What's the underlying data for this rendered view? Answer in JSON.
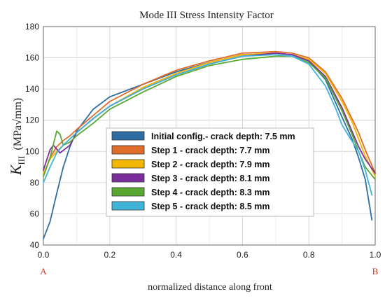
{
  "chart_data": {
    "type": "line",
    "title": "Mode III Stress Intensity Factor",
    "xlabel": "normalized distance along front",
    "ylabel_main": "K",
    "ylabel_sub": "III",
    "ylabel_unit": "(MPa√mm)",
    "end_labels": {
      "left": "A",
      "right": "B"
    },
    "xlim": [
      0,
      1
    ],
    "ylim": [
      40,
      180
    ],
    "xticks": [
      {
        "v": 0.0,
        "label": "0.0"
      },
      {
        "v": 0.2,
        "label": "0.2"
      },
      {
        "v": 0.4,
        "label": "0.4"
      },
      {
        "v": 0.6,
        "label": "0.6"
      },
      {
        "v": 0.8,
        "label": "0.8"
      },
      {
        "v": 1.0,
        "label": "1.0"
      }
    ],
    "yticks": [
      {
        "v": 40,
        "label": "40"
      },
      {
        "v": 60,
        "label": "60"
      },
      {
        "v": 80,
        "label": "80"
      },
      {
        "v": 100,
        "label": "100"
      },
      {
        "v": 120,
        "label": "120"
      },
      {
        "v": 140,
        "label": "140"
      },
      {
        "v": 160,
        "label": "160"
      },
      {
        "v": 180,
        "label": "180"
      }
    ],
    "grid": true,
    "legend_position": "center-left",
    "series": [
      {
        "name": "Initial config.- crack depth: 7.5 mm",
        "color": "#2e6da4",
        "x": [
          0.0,
          0.02,
          0.04,
          0.06,
          0.08,
          0.1,
          0.15,
          0.2,
          0.3,
          0.4,
          0.5,
          0.6,
          0.7,
          0.75,
          0.8,
          0.85,
          0.9,
          0.93,
          0.95,
          0.97,
          0.99
        ],
        "y": [
          44,
          55,
          73,
          90,
          103,
          113,
          127,
          135,
          143,
          151,
          157,
          162,
          163,
          162,
          158,
          146,
          122,
          108,
          96,
          82,
          56
        ]
      },
      {
        "name": "Step 1 - crack depth: 7.7 mm",
        "color": "#e06c2a",
        "x": [
          0.0,
          0.02,
          0.04,
          0.06,
          0.08,
          0.1,
          0.15,
          0.2,
          0.3,
          0.4,
          0.5,
          0.6,
          0.7,
          0.75,
          0.8,
          0.85,
          0.9,
          0.93,
          0.95,
          0.97,
          1.0
        ],
        "y": [
          84,
          96,
          103,
          107,
          110,
          114,
          123,
          132,
          143,
          152,
          158,
          163,
          164,
          163,
          160,
          151,
          134,
          121,
          112,
          101,
          86
        ]
      },
      {
        "name": "Step 2 - crack depth: 7.9 mm",
        "color": "#f2b705",
        "x": [
          0.0,
          0.02,
          0.04,
          0.06,
          0.08,
          0.1,
          0.15,
          0.2,
          0.3,
          0.4,
          0.5,
          0.6,
          0.7,
          0.75,
          0.8,
          0.85,
          0.9,
          0.93,
          0.95,
          0.97,
          1.0
        ],
        "y": [
          86,
          95,
          100,
          104,
          108,
          112,
          121,
          129,
          141,
          150,
          157,
          162,
          163,
          162,
          159,
          150,
          132,
          119,
          108,
          97,
          84
        ]
      },
      {
        "name": "Step 3 - crack depth: 8.1 mm",
        "color": "#7a2e9c",
        "x": [
          0.0,
          0.02,
          0.03,
          0.05,
          0.08,
          0.1,
          0.15,
          0.2,
          0.3,
          0.4,
          0.5,
          0.6,
          0.7,
          0.75,
          0.8,
          0.85,
          0.9,
          0.93,
          0.95,
          0.97,
          1.0
        ],
        "y": [
          88,
          101,
          104,
          99,
          104,
          112,
          121,
          129,
          140,
          149,
          156,
          161,
          163,
          162,
          158,
          148,
          128,
          113,
          103,
          95,
          86
        ]
      },
      {
        "name": "Step 4 - crack depth: 8.3 mm",
        "color": "#5aa832",
        "x": [
          0.0,
          0.02,
          0.04,
          0.05,
          0.06,
          0.08,
          0.1,
          0.15,
          0.2,
          0.3,
          0.4,
          0.5,
          0.6,
          0.7,
          0.75,
          0.8,
          0.85,
          0.9,
          0.93,
          0.95,
          0.97,
          1.0
        ],
        "y": [
          84,
          96,
          113,
          111,
          104,
          106,
          110,
          118,
          127,
          138,
          148,
          155,
          159,
          161,
          161,
          157,
          147,
          126,
          111,
          100,
          90,
          82
        ]
      },
      {
        "name": "Step 5 - crack depth: 8.5 mm",
        "color": "#3fb4d9",
        "x": [
          0.0,
          0.02,
          0.04,
          0.06,
          0.08,
          0.1,
          0.15,
          0.2,
          0.3,
          0.4,
          0.5,
          0.6,
          0.7,
          0.75,
          0.8,
          0.85,
          0.88,
          0.9,
          0.92,
          0.95,
          0.97,
          0.99
        ],
        "y": [
          80,
          90,
          99,
          104,
          108,
          112,
          121,
          129,
          140,
          149,
          156,
          161,
          162,
          161,
          156,
          142,
          128,
          117,
          110,
          100,
          88,
          72
        ]
      }
    ]
  }
}
